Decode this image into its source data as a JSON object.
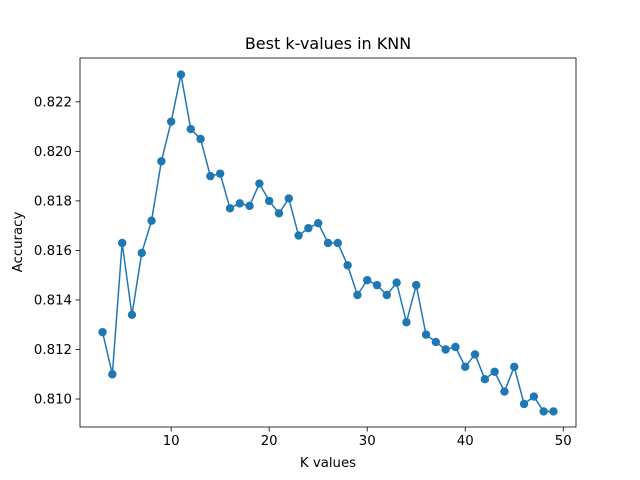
{
  "chart_data": {
    "type": "line",
    "title": "Best k-values in KNN",
    "xlabel": "K values",
    "ylabel": "Accuracy",
    "xlim": [
      0.7,
      51.3
    ],
    "ylim": [
      0.80887,
      0.82377
    ],
    "xticks": [
      10,
      20,
      30,
      40,
      50
    ],
    "xtick_labels": [
      "10",
      "20",
      "30",
      "40",
      "50"
    ],
    "yticks": [
      0.81,
      0.812,
      0.814,
      0.816,
      0.818,
      0.82,
      0.822
    ],
    "ytick_labels": [
      "0.810",
      "0.812",
      "0.814",
      "0.816",
      "0.818",
      "0.820",
      "0.822"
    ],
    "grid": false,
    "marker": "circle",
    "color": "#1f77b4",
    "series": [
      {
        "x": [
          3,
          4,
          5,
          6,
          7,
          8,
          9,
          10,
          11,
          12,
          13,
          14,
          15,
          16,
          17,
          18,
          19,
          20,
          21,
          22,
          23,
          24,
          25,
          26,
          27,
          28,
          29,
          30,
          31,
          32,
          33,
          34,
          35,
          36,
          37,
          38,
          39,
          40,
          41,
          42,
          43,
          44,
          45,
          46,
          47,
          48,
          49
        ],
        "y": [
          0.8127,
          0.811,
          0.8163,
          0.8134,
          0.8159,
          0.8172,
          0.8196,
          0.8212,
          0.8231,
          0.8209,
          0.8205,
          0.819,
          0.8191,
          0.8177,
          0.8179,
          0.8178,
          0.8187,
          0.818,
          0.8175,
          0.8181,
          0.8166,
          0.8169,
          0.8171,
          0.8163,
          0.8163,
          0.8154,
          0.8142,
          0.8148,
          0.8146,
          0.8142,
          0.8147,
          0.8131,
          0.8146,
          0.8126,
          0.8123,
          0.812,
          0.8121,
          0.8113,
          0.8118,
          0.8108,
          0.8111,
          0.8103,
          0.8113,
          0.8098,
          0.8101,
          0.8095,
          0.8095
        ]
      }
    ]
  }
}
